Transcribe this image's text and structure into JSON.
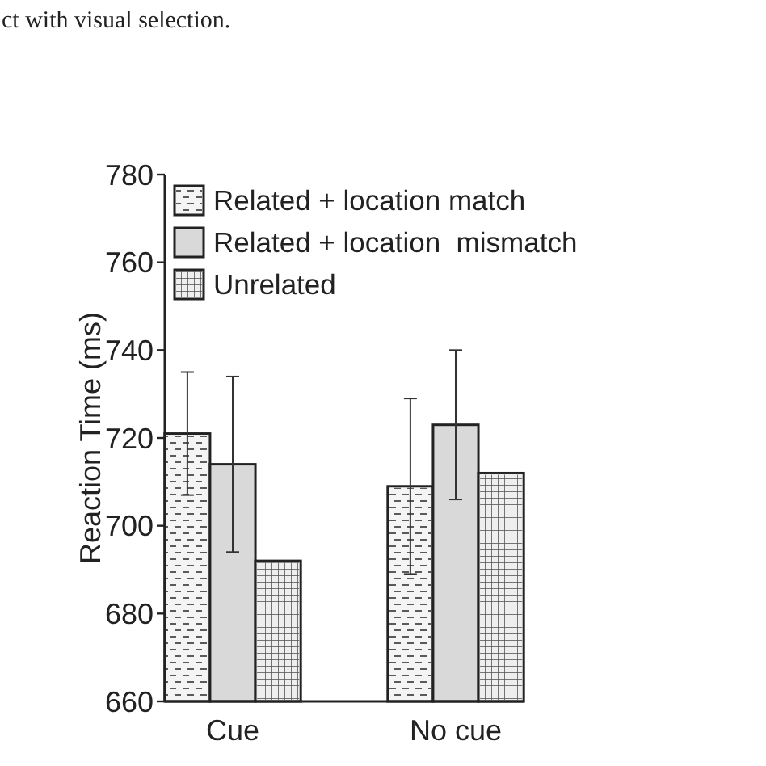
{
  "chart_data": {
    "type": "bar",
    "ylabel": "Reaction Time (ms)",
    "annotations": [
      "ct with visual selection."
    ],
    "categories": [
      "Cue",
      "No cue"
    ],
    "series": [
      {
        "name": "Related + location match",
        "color": "#f4f4f4",
        "values": [
          721,
          709
        ],
        "errors": [
          14,
          20
        ]
      },
      {
        "name": "Related + location  mismatch",
        "color": "#d9d9d9",
        "values": [
          714,
          723
        ],
        "errors": [
          20,
          17
        ]
      },
      {
        "name": "Unrelated",
        "color": "#eeeeee",
        "values": [
          692,
          712
        ]
      }
    ],
    "ylim": [
      660,
      780
    ],
    "yticks": [
      660,
      680,
      700,
      720,
      740,
      760,
      780
    ],
    "legend": "top",
    "grid": false
  }
}
